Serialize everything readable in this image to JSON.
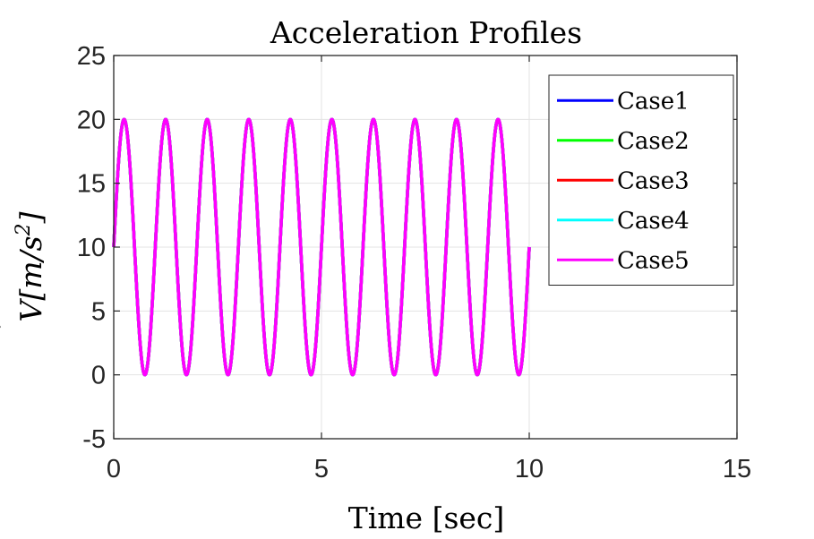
{
  "chart_data": {
    "type": "line",
    "title": "Acceleration Profiles",
    "xlabel": "Time [sec]",
    "ylabel": {
      "dot": "˙",
      "main": "V[m/s",
      "sup": "2",
      "close": "]"
    },
    "xlim": [
      0,
      15
    ],
    "ylim": [
      -5,
      25
    ],
    "xticks": [
      0,
      5,
      10,
      15
    ],
    "yticks": [
      -5,
      0,
      5,
      10,
      15,
      20,
      25
    ],
    "xtick_labels": [
      "0",
      "5",
      "10",
      "15"
    ],
    "ytick_labels": [
      "-5",
      "0",
      "5",
      "10",
      "15",
      "20",
      "25"
    ],
    "grid": true,
    "legend_position": "top-right",
    "function": "y = 10 + 10·sin(2π·t), t from 0 to 10 sec",
    "x_range": [
      0,
      10
    ],
    "offset": 10,
    "amplitude": 10,
    "frequency_hz": 1,
    "series": [
      {
        "name": "Case1",
        "color": "#0000ff"
      },
      {
        "name": "Case2",
        "color": "#00ff00"
      },
      {
        "name": "Case3",
        "color": "#ff0000"
      },
      {
        "name": "Case4",
        "color": "#00ffff"
      },
      {
        "name": "Case5",
        "color": "#ff00ff"
      }
    ]
  }
}
